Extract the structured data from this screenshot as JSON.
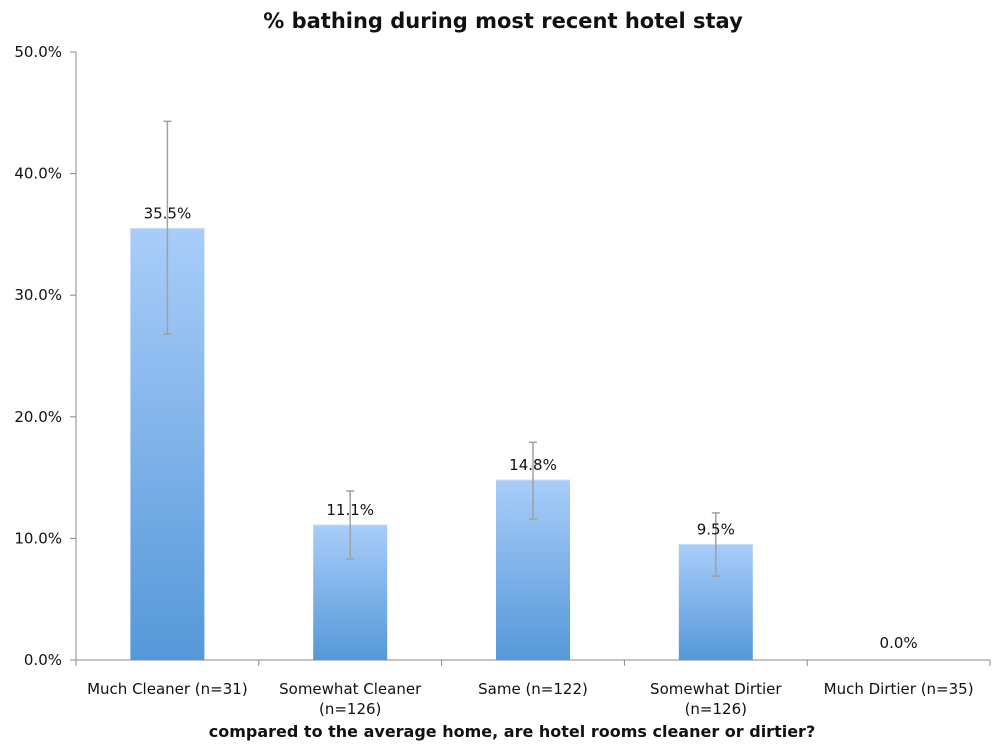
{
  "chart_data": {
    "type": "bar",
    "title": "% bathing during most recent hotel stay",
    "xlabel": "compared to the average home, are hotel rooms cleaner or dirtier?",
    "ylabel": "",
    "categories": [
      [
        "Much Cleaner (n=31)"
      ],
      [
        "Somewhat Cleaner",
        "(n=126)"
      ],
      [
        "Same (n=122)"
      ],
      [
        "Somewhat Dirtier",
        "(n=126)"
      ],
      [
        "Much Dirtier (n=35)"
      ]
    ],
    "values": [
      35.5,
      11.1,
      14.8,
      9.5,
      0.0
    ],
    "data_labels": [
      "35.5%",
      "11.1%",
      "14.8%",
      "9.5%",
      "0.0%"
    ],
    "error_bars": [
      [
        26.8,
        44.3
      ],
      [
        8.3,
        13.9
      ],
      [
        11.6,
        17.9
      ],
      [
        6.9,
        12.1
      ],
      [
        0.0,
        0.0
      ]
    ],
    "ylim": [
      0,
      50
    ],
    "yticks": [
      0,
      10,
      20,
      30,
      40,
      50
    ],
    "ytick_labels": [
      "0.0%",
      "10.0%",
      "20.0%",
      "30.0%",
      "40.0%",
      "50.0%"
    ],
    "grid": false,
    "legend": "none",
    "colors": {
      "bar_top": "#a9cdf9",
      "bar_bottom": "#5598d9",
      "axis": "#8a8a8a",
      "error_bar": "#a0a0a0"
    }
  }
}
